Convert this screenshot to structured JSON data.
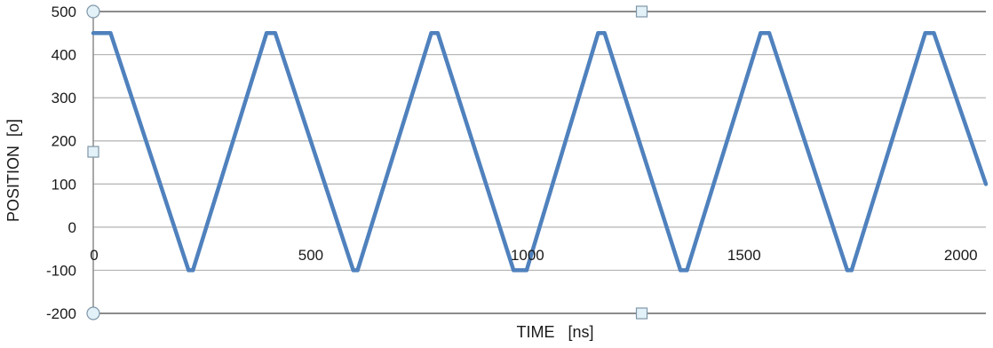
{
  "chart_data": {
    "type": "line",
    "title": "",
    "xlabel": "TIME   [ns]",
    "ylabel": "POSITION  [o]",
    "xlim": [
      0,
      2060
    ],
    "ylim": [
      -200,
      500
    ],
    "x_ticks": [
      0,
      500,
      1000,
      1500,
      2000
    ],
    "y_ticks": [
      -200,
      -100,
      0,
      100,
      200,
      300,
      400,
      500
    ],
    "x_tick_labels": [
      "0",
      "500",
      "1000",
      "1500",
      "2000"
    ],
    "y_tick_labels": [
      "-200",
      "-100",
      "0",
      "100",
      "200",
      "300",
      "400",
      "500"
    ],
    "grid": "horizontal",
    "legend": "none",
    "series": [
      {
        "color": "#4f81bd",
        "x": [
          0,
          40,
          220,
          230,
          400,
          420,
          600,
          610,
          780,
          795,
          970,
          1000,
          1165,
          1180,
          1355,
          1370,
          1540,
          1560,
          1740,
          1750,
          1920,
          1940,
          2060
        ],
        "y": [
          450,
          450,
          -100,
          -100,
          450,
          450,
          -100,
          -100,
          450,
          450,
          -100,
          -100,
          450,
          450,
          -100,
          -100,
          450,
          450,
          -100,
          -100,
          450,
          450,
          100
        ]
      }
    ]
  }
}
